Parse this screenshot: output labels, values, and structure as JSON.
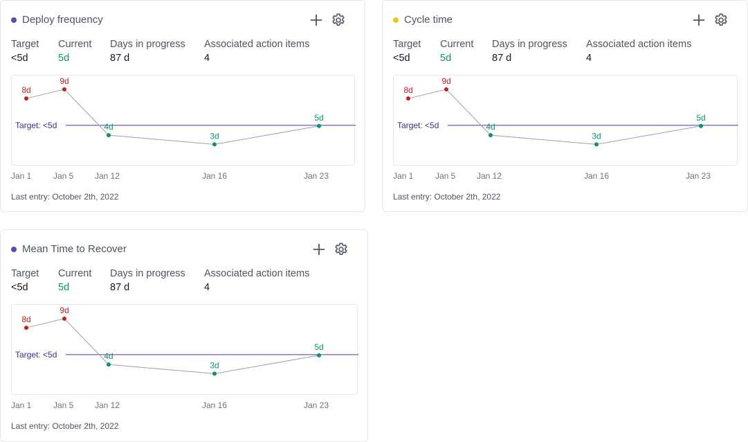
{
  "stat_labels": {
    "target": "Target",
    "current": "Current",
    "days": "Days in progress",
    "items": "Associated action items"
  },
  "cards": [
    {
      "title": "Deploy frequency",
      "dot_color": "#5b4bb7",
      "target": "<5d",
      "current": "5d",
      "days_in_progress": "87 d",
      "action_items": "4",
      "last_entry": "Last entry: October 2th, 2022"
    },
    {
      "title": "Cycle time",
      "dot_color": "#f5c518",
      "target": "<5d",
      "current": "5d",
      "days_in_progress": "87 d",
      "action_items": "4",
      "last_entry": "Last entry: October 2th, 2022"
    },
    {
      "title": "Mean Time to Recover",
      "dot_color": "#5b4bb7",
      "target": "<5d",
      "current": "5d",
      "days_in_progress": "87 d",
      "action_items": "4",
      "last_entry": "Last entry: October 2th, 2022"
    }
  ],
  "chart_data": {
    "type": "line",
    "x": [
      "Jan 1",
      "Jan 5",
      "Jan 12",
      "Jan 16",
      "Jan 23"
    ],
    "values": [
      8,
      9,
      4,
      3,
      5
    ],
    "point_labels": [
      "8d",
      "9d",
      "4d",
      "3d",
      "5d"
    ],
    "target_value": 5,
    "target_label": "Target: <5d",
    "colors": {
      "above_target": "#c81e1e",
      "at_or_below_target": "#059669",
      "target_line": "#6b5fb5",
      "target_text": "#3b2f8f",
      "series_line": "#a09cb0"
    }
  }
}
